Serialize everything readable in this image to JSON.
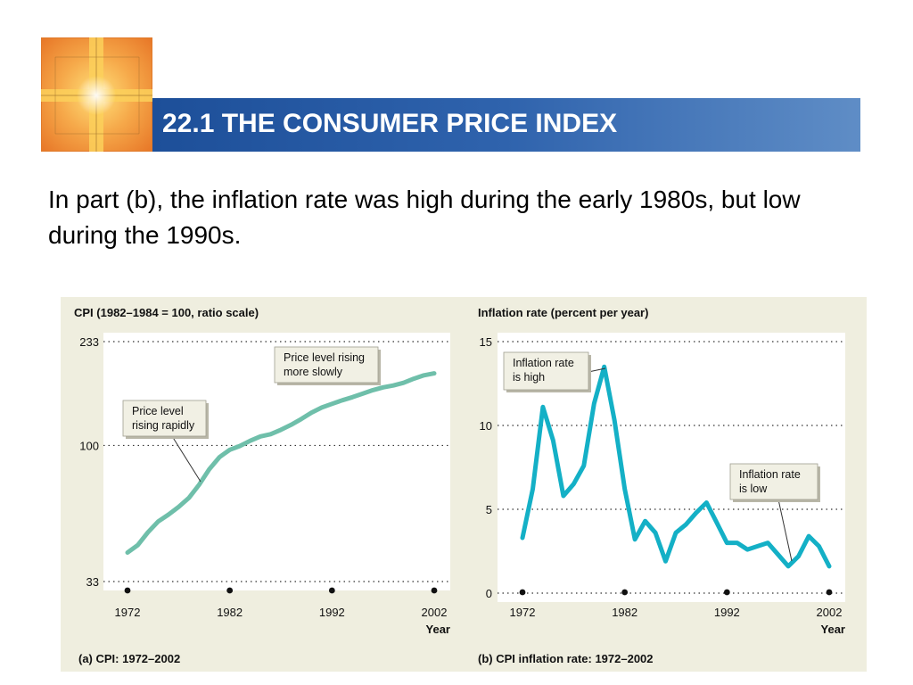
{
  "slide": {
    "title": "22.1 THE CONSUMER PRICE INDEX",
    "text": "In part (b), the inflation rate was high during the early 1980s, but low during the 1990s."
  },
  "colors": {
    "title_bar": "#2f63ad",
    "title_text": "#ffffff",
    "panel_a_line": "#6fbfaa",
    "panel_b_line": "#14b0c6",
    "figure_background": "#efeedf",
    "plot_background": "#ffffff"
  },
  "icons": {
    "logo": "orange-cross-logo-icon"
  },
  "chart_data": [
    {
      "type": "line",
      "title": "CPI (1982–1984 = 100, ratio scale)",
      "caption": "(a) CPI: 1972–2002",
      "xlabel": "Year",
      "scale": "log",
      "ylim": [
        33,
        233
      ],
      "yticks": [
        33,
        100,
        233
      ],
      "xticks": [
        1972,
        1982,
        1992,
        2002
      ],
      "grid": "dotted at y ticks",
      "series": [
        {
          "x": [
            1972,
            1973,
            1974,
            1975,
            1976,
            1977,
            1978,
            1979,
            1980,
            1981,
            1982,
            1983,
            1984,
            1985,
            1986,
            1987,
            1988,
            1989,
            1990,
            1991,
            1992,
            1993,
            1994,
            1995,
            1996,
            1997,
            1998,
            1999,
            2000,
            2001,
            2002
          ],
          "values": [
            41.8,
            44.4,
            49.3,
            53.8,
            56.9,
            60.6,
            65.2,
            72.6,
            82.4,
            90.9,
            96.5,
            99.6,
            103.9,
            107.6,
            109.6,
            113.6,
            118.3,
            124.0,
            130.7,
            136.2,
            140.3,
            144.5,
            148.2,
            152.4,
            156.9,
            160.5,
            163.0,
            166.6,
            172.2,
            177.1,
            179.9
          ]
        }
      ],
      "annotations": [
        {
          "text": [
            "Price level",
            "rising rapidly"
          ]
        },
        {
          "text": [
            "Price level rising",
            "more slowly"
          ]
        }
      ]
    },
    {
      "type": "line",
      "title": "Inflation rate (percent per year)",
      "caption": "(b) CPI inflation rate: 1972–2002",
      "xlabel": "Year",
      "ylim": [
        0,
        15
      ],
      "yticks": [
        0,
        5,
        10,
        15
      ],
      "xticks": [
        1972,
        1982,
        1992,
        2002
      ],
      "grid": "dotted at y ticks",
      "series": [
        {
          "x": [
            1972,
            1973,
            1974,
            1975,
            1976,
            1977,
            1978,
            1979,
            1980,
            1981,
            1982,
            1983,
            1984,
            1985,
            1986,
            1987,
            1988,
            1989,
            1990,
            1991,
            1992,
            1993,
            1994,
            1995,
            1996,
            1997,
            1998,
            1999,
            2000,
            2001,
            2002
          ],
          "values": [
            3.3,
            6.2,
            11.1,
            9.1,
            5.8,
            6.5,
            7.6,
            11.3,
            13.5,
            10.3,
            6.2,
            3.2,
            4.3,
            3.6,
            1.9,
            3.6,
            4.1,
            4.8,
            5.4,
            4.2,
            3.0,
            3.0,
            2.6,
            2.8,
            3.0,
            2.3,
            1.6,
            2.2,
            3.4,
            2.8,
            1.6
          ]
        }
      ],
      "annotations": [
        {
          "text": [
            "Inflation rate",
            "is high"
          ]
        },
        {
          "text": [
            "Inflation rate",
            "is low"
          ]
        }
      ]
    }
  ]
}
